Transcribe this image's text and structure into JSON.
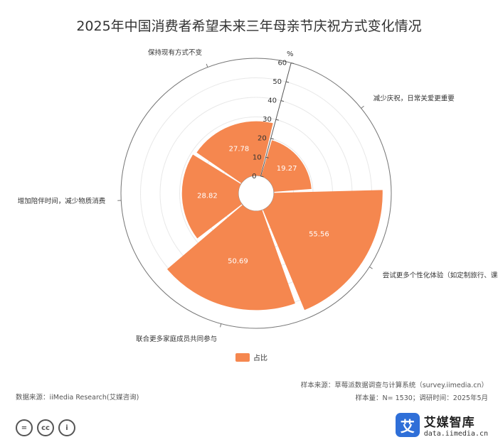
{
  "chart_data": {
    "type": "polar-bar",
    "title": "2025年中国消费者希望未来三年母亲节庆祝方式变化情况",
    "unit": "%",
    "categories": [
      "减少庆祝，日常关爱更重要",
      "尝试更多个性化体验（如定制旅行、课程）",
      "联合更多家庭成员共同参与",
      "增加陪伴时间，减少物质消费",
      "保持现有方式不变"
    ],
    "series": [
      {
        "name": "占比",
        "values": [
          19.27,
          55.56,
          50.69,
          28.82,
          27.78
        ]
      }
    ],
    "radial_ticks": [
      "0",
      "10",
      "20",
      "30",
      "40",
      "50",
      "60"
    ],
    "rlim": [
      0,
      60
    ],
    "legend": "bottom",
    "color": "#f5874f"
  },
  "source": {
    "sample": "样本来源：草莓派数据调查与计算系统（survey.iimedia.cn）",
    "size": "样本量：N= 1530；调研时间：2025年5月",
    "data": "数据来源：iiMedia Research(艾媒咨询)"
  },
  "brand": {
    "name": "艾媒智库",
    "url": "data.iimedia.cn",
    "logo_char": "艾"
  },
  "cc_icons": [
    "=",
    "cc",
    "i"
  ]
}
